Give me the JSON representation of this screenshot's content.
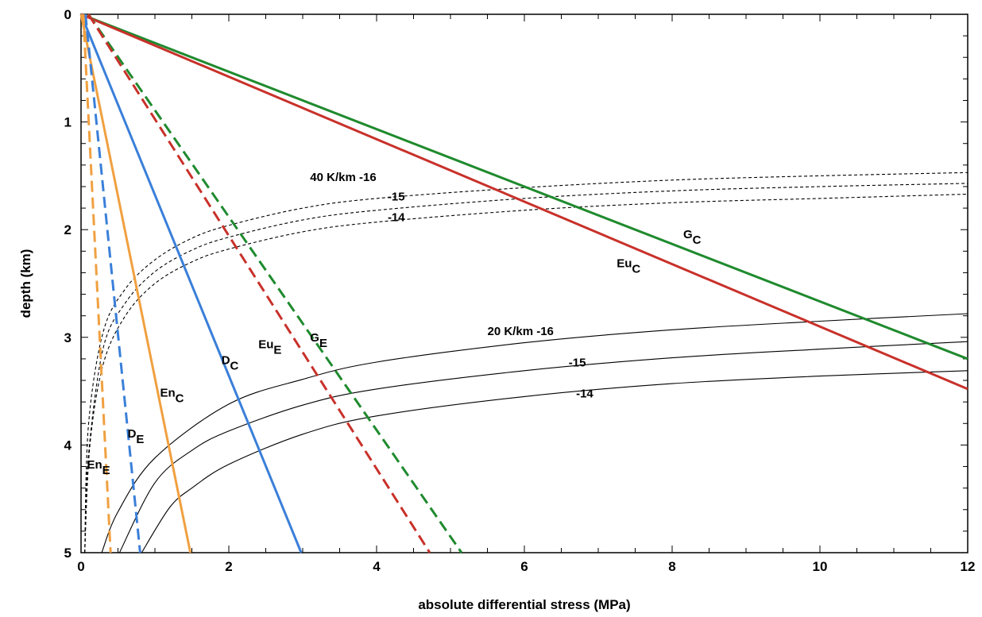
{
  "chart_data": {
    "type": "line",
    "xlabel": "absolute differential stress (MPa)",
    "ylabel": "depth (km)",
    "xlim": [
      0,
      12
    ],
    "ylim": [
      5,
      0
    ],
    "x_ticks": [
      "0",
      "2",
      "4",
      "6",
      "8",
      "10",
      "12"
    ],
    "y_ticks": [
      "0",
      "1",
      "2",
      "3",
      "4",
      "5"
    ],
    "grid": false,
    "brittle_series": [
      {
        "name": "G",
        "sub": "C",
        "color": "#1f8a2e",
        "dashed": false,
        "x": [
          0,
          12
        ],
        "y": [
          0,
          3.2
        ]
      },
      {
        "name": "Eu",
        "sub": "C",
        "color": "#c8312a",
        "dashed": false,
        "x": [
          0,
          12
        ],
        "y": [
          0,
          3.48
        ]
      },
      {
        "name": "D",
        "sub": "C",
        "color": "#3a7fd9",
        "dashed": false,
        "x": [
          0,
          2.98
        ],
        "y": [
          0,
          5
        ]
      },
      {
        "name": "En",
        "sub": "C",
        "color": "#f0a040",
        "dashed": false,
        "x": [
          0,
          1.48
        ],
        "y": [
          0,
          5
        ]
      },
      {
        "name": "G",
        "sub": "E",
        "color": "#1f8a2e",
        "dashed": true,
        "x": [
          0.1,
          5.15
        ],
        "y": [
          0,
          5
        ]
      },
      {
        "name": "Eu",
        "sub": "E",
        "color": "#c8312a",
        "dashed": true,
        "x": [
          0.1,
          4.72
        ],
        "y": [
          0,
          5
        ]
      },
      {
        "name": "D",
        "sub": "E",
        "color": "#3a7fd9",
        "dashed": true,
        "x": [
          0.06,
          0.8
        ],
        "y": [
          0,
          5
        ]
      },
      {
        "name": "En",
        "sub": "E",
        "color": "#f0a040",
        "dashed": true,
        "x": [
          0.03,
          0.4
        ],
        "y": [
          0,
          5
        ]
      }
    ],
    "ductile_series": [
      {
        "gradient": "20 K/km",
        "strain_rate": "-16",
        "dashed": false,
        "x": [
          0.28,
          0.5,
          1,
          2,
          3,
          4,
          6,
          8,
          10,
          12
        ],
        "y": [
          5,
          4.62,
          4.12,
          3.62,
          3.39,
          3.23,
          3.05,
          2.93,
          2.85,
          2.78
        ]
      },
      {
        "gradient": "20 K/km",
        "strain_rate": "-15",
        "dashed": false,
        "x": [
          0.52,
          1,
          1.5,
          2,
          3,
          4,
          6,
          8,
          10,
          12
        ],
        "y": [
          5,
          4.35,
          4.05,
          3.87,
          3.63,
          3.48,
          3.31,
          3.19,
          3.11,
          3.04
        ]
      },
      {
        "gradient": "20 K/km",
        "strain_rate": "-14",
        "dashed": false,
        "x": [
          0.82,
          1.2,
          1.5,
          2,
          3,
          4,
          6,
          8,
          10,
          12
        ],
        "y": [
          5,
          4.58,
          4.4,
          4.18,
          3.9,
          3.73,
          3.55,
          3.43,
          3.36,
          3.31
        ]
      },
      {
        "gradient": "40 K/km",
        "strain_rate": "-16",
        "dashed": true,
        "x": [
          0.05,
          0.1,
          0.3,
          0.6,
          1,
          1.5,
          2,
          3,
          4,
          6,
          8,
          10,
          12
        ],
        "y": [
          5,
          3.82,
          2.95,
          2.55,
          2.28,
          2.08,
          1.96,
          1.8,
          1.71,
          1.61,
          1.54,
          1.5,
          1.47
        ]
      },
      {
        "gradient": "40 K/km",
        "strain_rate": "-15",
        "dashed": true,
        "x": [
          0.05,
          0.1,
          0.3,
          0.6,
          1,
          1.5,
          2,
          3,
          4,
          6,
          8,
          10,
          12
        ],
        "y": [
          5,
          4.1,
          3.1,
          2.68,
          2.39,
          2.19,
          2.07,
          1.91,
          1.82,
          1.71,
          1.64,
          1.6,
          1.57
        ]
      },
      {
        "gradient": "40 K/km",
        "strain_rate": "-14",
        "dashed": true,
        "x": [
          0.05,
          0.12,
          0.3,
          0.6,
          1,
          1.5,
          2,
          3,
          4,
          6,
          8,
          10,
          12
        ],
        "y": [
          5,
          4.0,
          3.25,
          2.8,
          2.5,
          2.3,
          2.18,
          2.02,
          1.93,
          1.82,
          1.75,
          1.71,
          1.67
        ]
      }
    ],
    "annotations": [
      {
        "text": "40 K/km  -16",
        "x": 3.1,
        "y": 1.55
      },
      {
        "text": "-15",
        "x": 4.15,
        "y": 1.73
      },
      {
        "text": "-14",
        "x": 4.15,
        "y": 1.92
      },
      {
        "text": "20 K/km  -16",
        "x": 5.5,
        "y": 2.98
      },
      {
        "text": "-15",
        "x": 6.6,
        "y": 3.27
      },
      {
        "text": "-14",
        "x": 6.7,
        "y": 3.56
      }
    ],
    "curve_labels": [
      {
        "name": "G",
        "sub": "C",
        "x": 8.15,
        "y": 2.08
      },
      {
        "name": "Eu",
        "sub": "C",
        "x": 7.25,
        "y": 2.35
      },
      {
        "name": "G",
        "sub": "E",
        "x": 3.1,
        "y": 3.04
      },
      {
        "name": "Eu",
        "sub": "E",
        "x": 2.4,
        "y": 3.1
      },
      {
        "name": "D",
        "sub": "C",
        "x": 1.9,
        "y": 3.25
      },
      {
        "name": "En",
        "sub": "C",
        "x": 1.07,
        "y": 3.55
      },
      {
        "name": "D",
        "sub": "E",
        "x": 0.63,
        "y": 3.93
      },
      {
        "name": "En",
        "sub": "E",
        "x": 0.08,
        "y": 4.22
      }
    ]
  }
}
